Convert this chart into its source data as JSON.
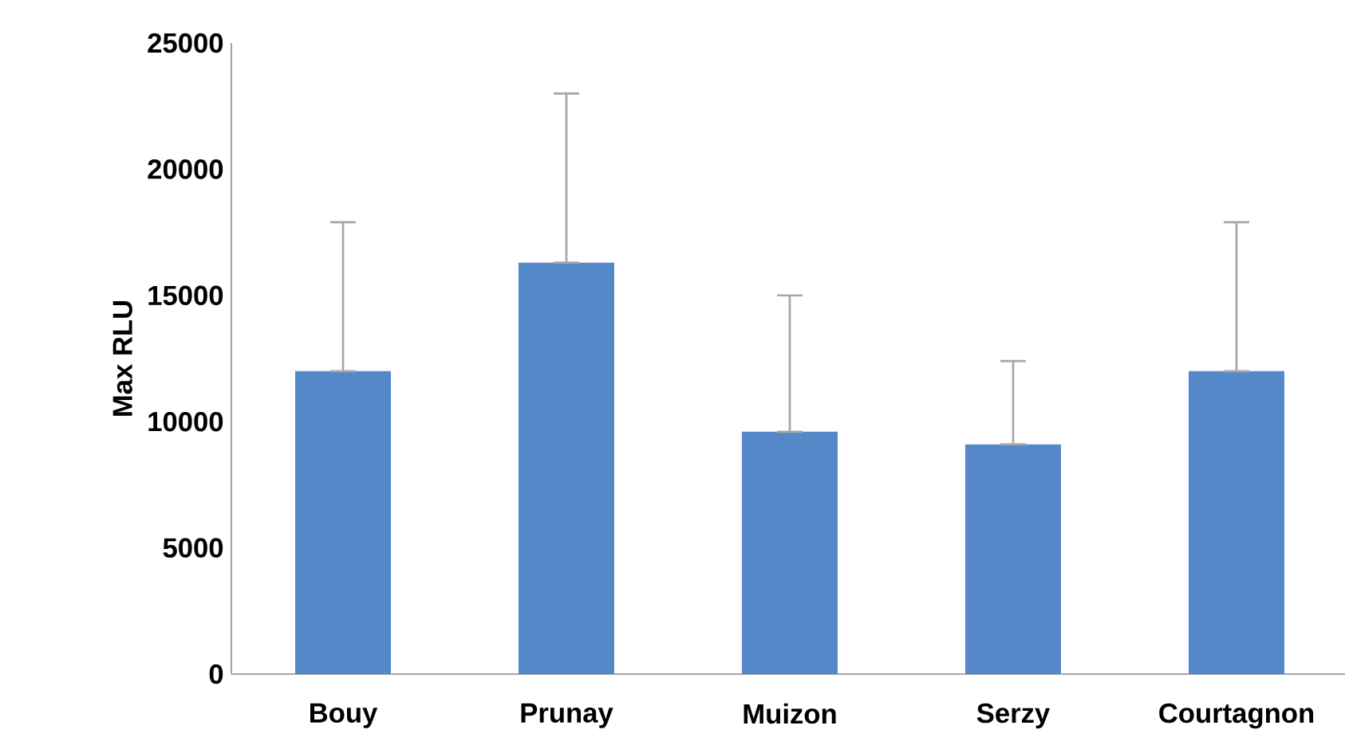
{
  "chart_data": {
    "type": "bar",
    "ylabel": "Max RLU",
    "categories": [
      "Bouy",
      "Prunay",
      "Muizon",
      "Serzy",
      "Courtagnon"
    ],
    "values": [
      12000,
      16300,
      9600,
      9100,
      12000
    ],
    "errors": [
      [
        12000,
        17900
      ],
      [
        16300,
        23000
      ],
      [
        9600,
        15000
      ],
      [
        9100,
        12400
      ],
      [
        12000,
        17900
      ]
    ],
    "color": "#5588c8",
    "ylim": [
      0,
      25000
    ],
    "yticks": [
      0,
      5000,
      10000,
      15000,
      20000,
      25000
    ]
  }
}
